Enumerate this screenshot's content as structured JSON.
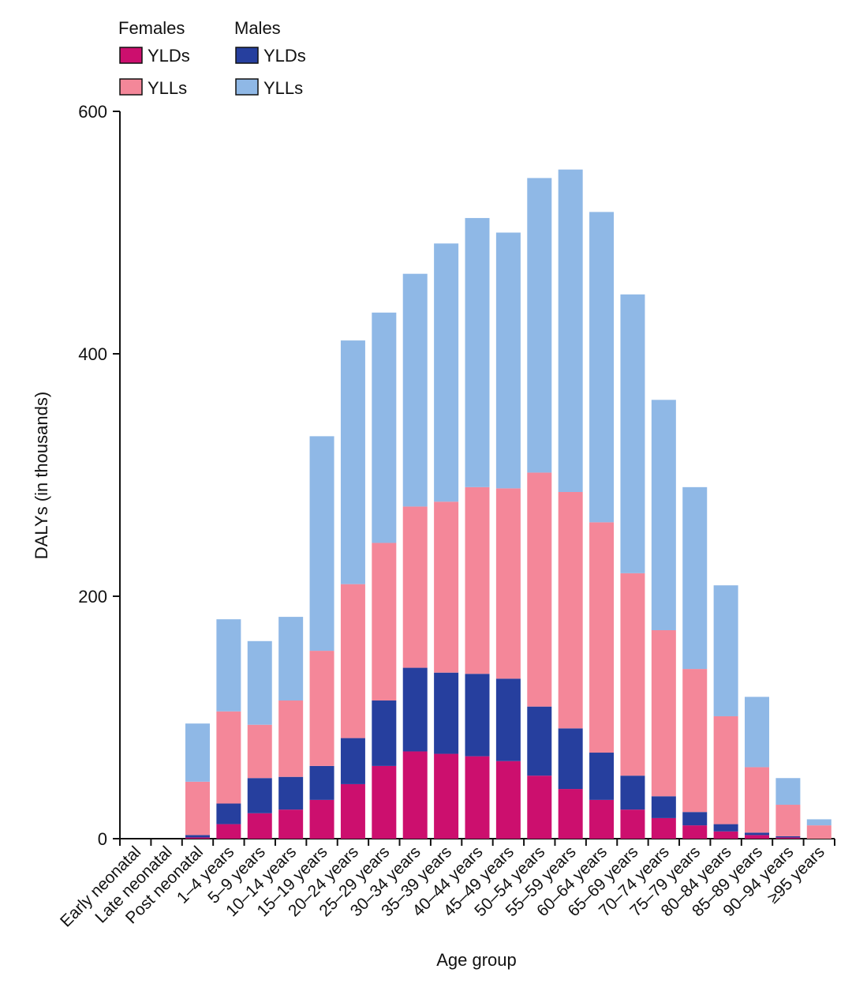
{
  "chart_data": {
    "type": "bar",
    "stacked": true,
    "ylabel": "DALYs (in thousands)",
    "xlabel": "Age group",
    "ylim": [
      0,
      600
    ],
    "yticks": [
      "0",
      "200",
      "400",
      "600"
    ],
    "legend": {
      "placement": "top-left",
      "group_titles": [
        "Females",
        "Males"
      ],
      "entries": [
        "YLDs",
        "YLLs",
        "YLDs",
        "YLLs"
      ]
    },
    "colors": {
      "female_ylds": "#cc0f6e",
      "female_ylls": "#f48799",
      "male_ylds": "#263f9e",
      "male_ylls": "#8fb8e6"
    },
    "categories": [
      "Early neonatal",
      "Late neonatal",
      "Post neonatal",
      "1–4 years",
      "5–9 years",
      "10–14 years",
      "15–19 years",
      "20–24 years",
      "25–29 years",
      "30–34 years",
      "35–39 years",
      "40–44 years",
      "45–49 years",
      "50–54 years",
      "55–59 years",
      "60–64 years",
      "65–69 years",
      "70–74 years",
      "75–79 years",
      "80–84 years",
      "85–89 years",
      "90–94 years",
      "≥95 years"
    ],
    "series": [
      {
        "group": "Females",
        "name": "YLDs",
        "values": [
          0,
          0,
          1,
          12,
          21,
          24,
          32,
          45,
          60,
          72,
          70,
          68,
          64,
          52,
          41,
          32,
          24,
          17,
          11,
          6,
          3,
          1,
          0
        ]
      },
      {
        "group": "Males",
        "name": "YLDs",
        "values": [
          0,
          0,
          2,
          17,
          29,
          27,
          28,
          38,
          54,
          69,
          67,
          68,
          68,
          57,
          50,
          39,
          28,
          18,
          11,
          6,
          2,
          1,
          0
        ]
      },
      {
        "group": "Females",
        "name": "YLLs",
        "values": [
          0,
          0,
          44,
          76,
          44,
          63,
          95,
          127,
          130,
          133,
          141,
          154,
          157,
          193,
          195,
          190,
          167,
          137,
          118,
          89,
          54,
          26,
          11
        ]
      },
      {
        "group": "Males",
        "name": "YLLs",
        "values": [
          0,
          0,
          48,
          76,
          69,
          69,
          177,
          201,
          190,
          192,
          213,
          222,
          211,
          243,
          266,
          256,
          230,
          190,
          150,
          108,
          58,
          22,
          5
        ]
      }
    ]
  }
}
